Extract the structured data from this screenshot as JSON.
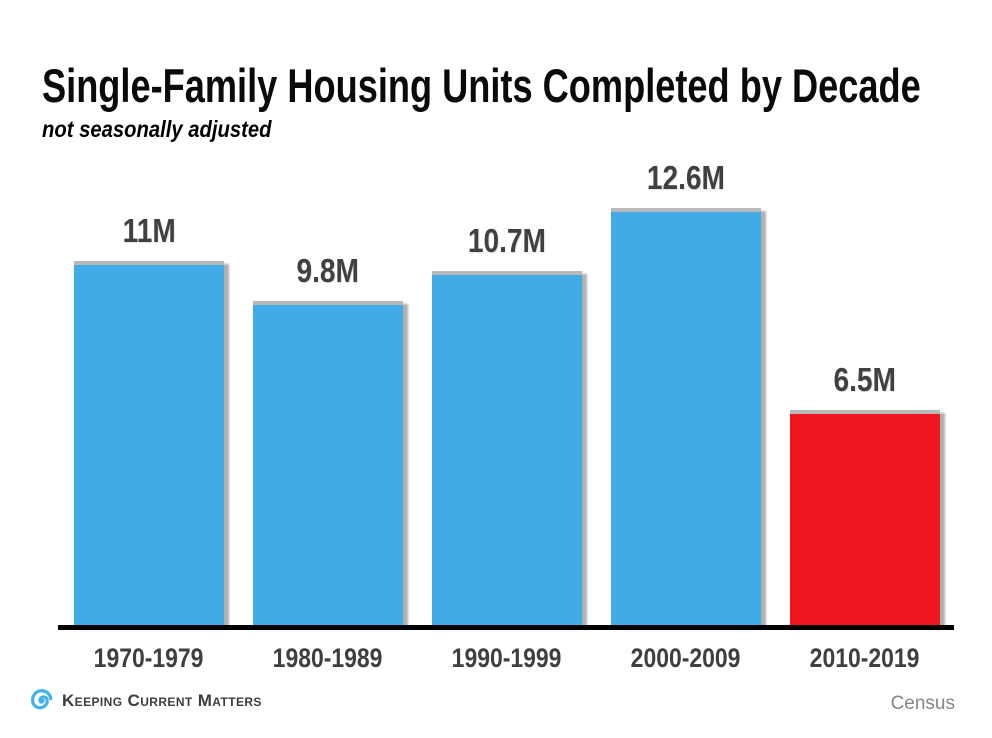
{
  "header": {
    "title": "Single-Family Housing Units Completed by Decade",
    "subtitle": "not seasonally adjusted"
  },
  "chart_data": {
    "type": "bar",
    "title": "Single-Family Housing Units Completed by Decade",
    "subtitle": "not seasonally adjusted",
    "categories": [
      "1970-1979",
      "1980-1989",
      "1990-1999",
      "2000-2009",
      "2010-2019"
    ],
    "values": [
      11,
      9.8,
      10.7,
      12.6,
      6.5
    ],
    "value_labels": [
      "11M",
      "9.8M",
      "10.7M",
      "12.6M",
      "6.5M"
    ],
    "bar_colors": [
      "#41ABE8",
      "#41ABE8",
      "#41ABE8",
      "#41ABE8",
      "#EF151F"
    ],
    "default_color": "#41ABE8",
    "highlight_color": "#EF151F",
    "ylim": [
      0,
      14
    ],
    "grid": false,
    "legend": false,
    "axis_color": "#000000",
    "label_color": "#404040"
  },
  "footer": {
    "brand": "Keeping Current Matters",
    "source": "Census",
    "logo_icon": "swirl-icon",
    "logo_color": "#41B2EE"
  }
}
